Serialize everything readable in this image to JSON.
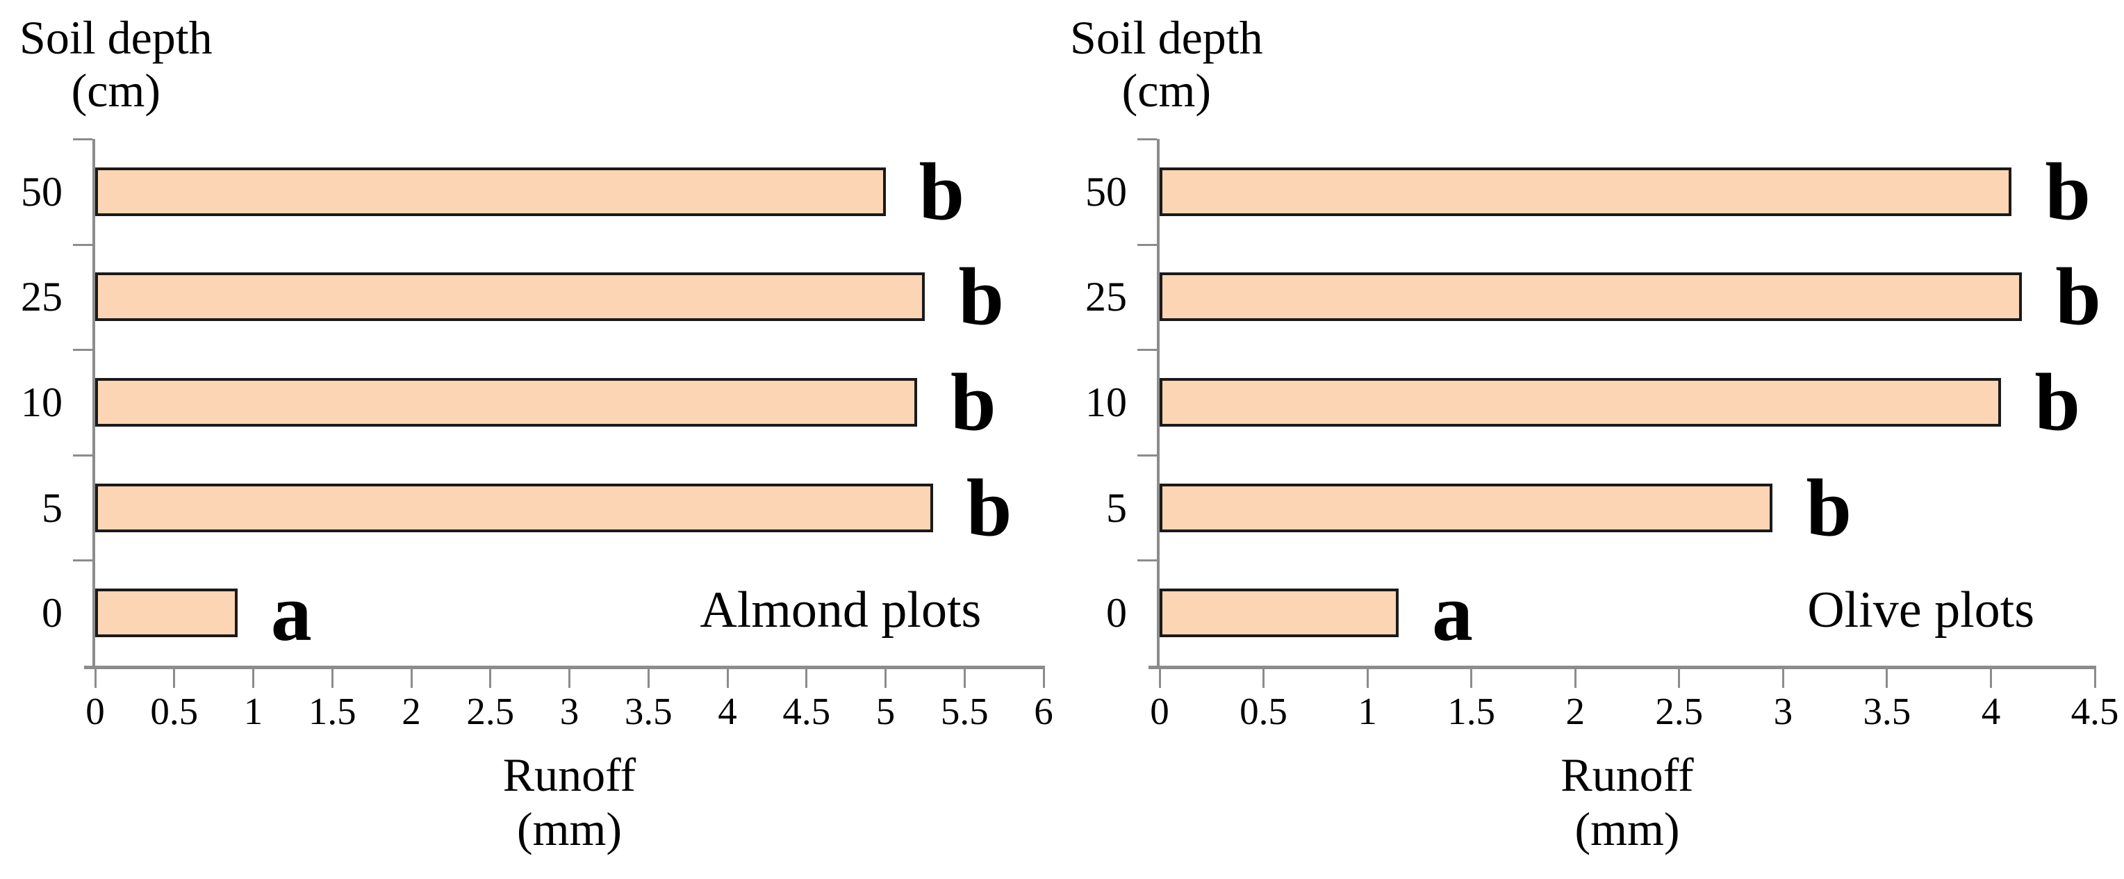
{
  "figure": {
    "description": "Two horizontal bar charts of runoff (mm) by soil depth (cm) for almond and olive plots, with significance letters a/b",
    "background": "#FFFFFF"
  },
  "style": {
    "bar_fill": "#FCD5B4",
    "bar_border": "#1A1A1A",
    "axis_color": "#8C8C8C",
    "text_color": "#000000"
  },
  "chart_data": [
    {
      "type": "bar",
      "orientation": "horizontal",
      "title": "Almond plots",
      "ylabel": "Soil depth (cm)",
      "ylabel_lines": [
        "Soil depth",
        "(cm)"
      ],
      "xlabel": "Runoff (mm)",
      "xlabel_lines": [
        "Runoff",
        "(mm)"
      ],
      "categories": [
        "50",
        "25",
        "10",
        "5",
        "0"
      ],
      "values": [
        5.0,
        5.25,
        5.2,
        5.3,
        0.9
      ],
      "significance_letters": [
        "b",
        "b",
        "b",
        "b",
        "a"
      ],
      "xlim": [
        0,
        6
      ],
      "xticks": [
        "0",
        "0.5",
        "1",
        "1.5",
        "2",
        "2.5",
        "3",
        "3.5",
        "4",
        "4.5",
        "5",
        "5.5",
        "6"
      ],
      "grid": false,
      "legend": false
    },
    {
      "type": "bar",
      "orientation": "horizontal",
      "title": "Olive plots",
      "ylabel": "Soil depth (cm)",
      "ylabel_lines": [
        "Soil depth",
        "(cm)"
      ],
      "xlabel": "Runoff (mm)",
      "xlabel_lines": [
        "Runoff",
        "(mm)"
      ],
      "categories": [
        "50",
        "25",
        "10",
        "5",
        "0"
      ],
      "values": [
        4.1,
        4.15,
        4.05,
        2.95,
        1.15
      ],
      "significance_letters": [
        "b",
        "b",
        "b",
        "b",
        "a"
      ],
      "xlim": [
        0,
        4.5
      ],
      "xticks": [
        "0",
        "0.5",
        "1",
        "1.5",
        "2",
        "2.5",
        "3",
        "3.5",
        "4",
        "4.5"
      ],
      "grid": false,
      "legend": false
    }
  ]
}
